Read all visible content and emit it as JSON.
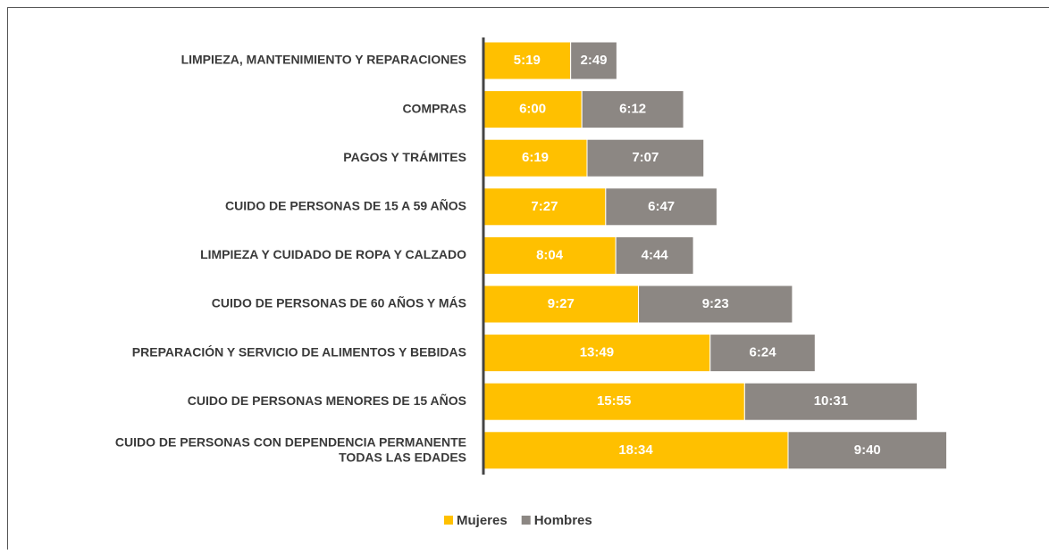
{
  "chart_data": {
    "type": "stacked-bar-horizontal",
    "categories": [
      "LIMPIEZA, MANTENIMIENTO Y REPARACIONES",
      "COMPRAS",
      "PAGOS Y TRÁMITES",
      "CUIDO DE PERSONAS DE 15 A 59 AÑOS",
      "LIMPIEZA Y CUIDADO DE ROPA Y CALZADO",
      "CUIDO DE PERSONAS DE 60 AÑOS Y MÁS",
      "PREPARACIÓN Y SERVICIO DE ALIMENTOS Y BEBIDAS",
      "CUIDO DE PERSONAS MENORES DE 15 AÑOS",
      "CUIDO DE PERSONAS  CON DEPENDENCIA PERMANENTE\nTODAS LAS EDADES"
    ],
    "series": [
      {
        "name": "Mujeres",
        "color": "#ffc000",
        "values": [
          5.3167,
          6,
          6.3167,
          7.45,
          8.0667,
          9.45,
          13.8167,
          15.9167,
          18.5667
        ],
        "value_labels": [
          "5:19",
          "6:00",
          "6:19",
          "7:27",
          "8:04",
          "9:27",
          "13:49",
          "15:55",
          "18:34"
        ]
      },
      {
        "name": "Hombres",
        "color": "#8c8783",
        "values": [
          2.8167,
          6.2,
          7.1167,
          6.7833,
          4.7333,
          9.3833,
          6.4,
          10.5167,
          9.6667
        ],
        "value_labels": [
          "2:49",
          "6:12",
          "7:07",
          "6:47",
          "4:44",
          "9:23",
          "6:24",
          "10:31",
          "9:40"
        ]
      }
    ],
    "xlim": [
      0,
      30
    ],
    "legend": "bottom"
  }
}
